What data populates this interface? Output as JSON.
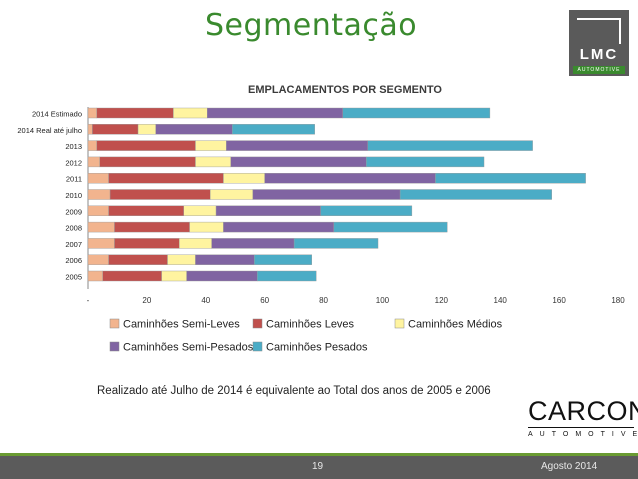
{
  "slide": {
    "title": "Segmentação",
    "footnote": "Realizado até Julho de 2014 é equivalente ao Total dos anos de 2005 e 2006",
    "page_number": "19",
    "date": "Agosto 2014"
  },
  "logos": {
    "lmc": {
      "name": "LMC",
      "subtitle": "AUTOMOTIVE"
    },
    "carcon": {
      "name": "CARCON",
      "subtitle": "AUTOMOTIVE"
    }
  },
  "colors": {
    "title": "#3a8a2e",
    "footer": "#5b5b5b",
    "footer_stripe": "#6a9b32"
  },
  "chart_data": {
    "type": "bar",
    "orientation": "horizontal",
    "stacked": true,
    "title": "EMPLACAMENTOS POR SEGMENTO",
    "categories": [
      "2014 Estimado",
      "2014 Real até julho",
      "2013",
      "2012",
      "2011",
      "2010",
      "2009",
      "2008",
      "2007",
      "2006",
      "2005"
    ],
    "series": [
      {
        "name": "Caminhões Semi-Leves",
        "color": "#f2b48e",
        "values": [
          3,
          1.5,
          3,
          4,
          7,
          7.5,
          7,
          9,
          9,
          7,
          5
        ]
      },
      {
        "name": "Caminhões Leves",
        "color": "#c0504d",
        "values": [
          26,
          15.5,
          33.5,
          32.5,
          39,
          34,
          25.5,
          25.5,
          22,
          20,
          20
        ]
      },
      {
        "name": "Caminhões Médios",
        "color": "#fff4a0",
        "values": [
          11.5,
          6,
          10.5,
          12,
          14,
          14.5,
          11,
          11.5,
          11,
          9.5,
          8.5
        ]
      },
      {
        "name": "Caminhões Semi-Pesados",
        "color": "#8064a2",
        "values": [
          46,
          26,
          48,
          46,
          58,
          50,
          35.5,
          37.5,
          28,
          20,
          24
        ]
      },
      {
        "name": "Caminhões Pesados",
        "color": "#4bacc6",
        "values": [
          50,
          28,
          56,
          40,
          51,
          51.5,
          31,
          38.5,
          28.5,
          19.5,
          20
        ]
      }
    ],
    "x_ticks": [
      "-",
      "20",
      "40",
      "60",
      "80",
      "100",
      "120",
      "140",
      "160",
      "180"
    ],
    "xlim": [
      0,
      180
    ],
    "grid": false,
    "legend_position": "bottom"
  }
}
